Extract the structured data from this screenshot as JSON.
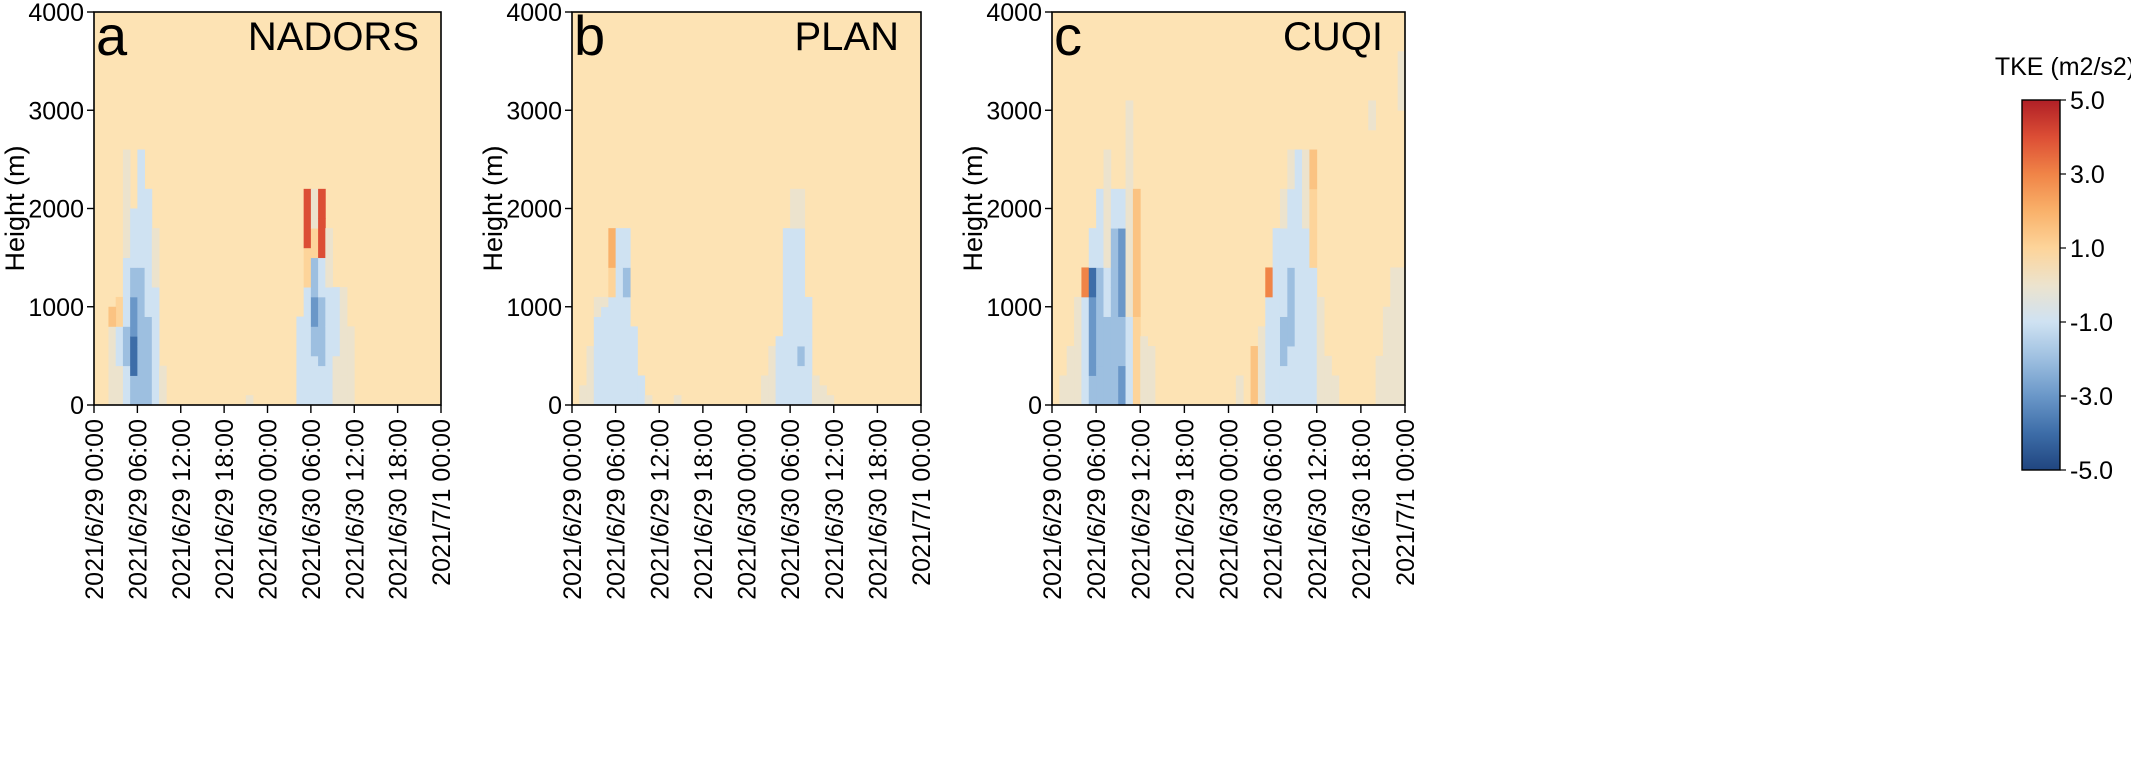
{
  "figure": {
    "colorbar": {
      "title": "TKE (m2/s2)",
      "ticks": [
        "5.0",
        "3.0",
        "1.0",
        "-1.0",
        "-3.0",
        "-5.0"
      ],
      "tick_values": [
        5,
        3,
        1,
        -1,
        -3,
        -5
      ],
      "vmin": -5,
      "vmax": 5,
      "colors": {
        "-5": "#20457f",
        "-4": "#3d6da8",
        "-3": "#6a97c8",
        "-2": "#9dbfe0",
        "-1": "#cfe2f2",
        "0": "#ece3cd",
        "1": "#fdd49a",
        "2": "#f9b16a",
        "3": "#f08447",
        "4": "#dc4e35",
        "5": "#b01f26"
      }
    },
    "background_color": "#fde3b4"
  },
  "chart_data": [
    {
      "type": "heatmap",
      "panel_letter": "a",
      "title": "NADORS",
      "ylabel": "Height (m)",
      "xlabel": "",
      "ylim": [
        0,
        4000
      ],
      "yticks": [
        0,
        1000,
        2000,
        3000,
        4000
      ],
      "xlim": [
        "2021/6/29 00:00",
        "2021/7/1 00:00"
      ],
      "xticks": [
        "2021/6/29 00:00",
        "2021/6/29 06:00",
        "2021/6/29 12:00",
        "2021/6/29 18:00",
        "2021/6/30 00:00",
        "2021/6/30 06:00",
        "2021/6/30 12:00",
        "2021/6/30 18:00",
        "2021/7/1 00:00"
      ],
      "background_value": 1,
      "cells": [
        [
          "2021/6/29 02:00",
          0,
          800,
          0
        ],
        [
          "2021/6/29 03:00",
          0,
          400,
          0
        ],
        [
          "2021/6/29 03:00",
          400,
          800,
          -1
        ],
        [
          "2021/6/29 03:00",
          800,
          1100,
          1
        ],
        [
          "2021/6/29 02:00",
          800,
          1000,
          1.5
        ],
        [
          "2021/6/29 04:00",
          0,
          400,
          -1
        ],
        [
          "2021/6/29 04:00",
          400,
          800,
          -2
        ],
        [
          "2021/6/29 04:00",
          800,
          1100,
          -1
        ],
        [
          "2021/6/29 04:00",
          1100,
          1500,
          -1
        ],
        [
          "2021/6/29 04:00",
          1500,
          2600,
          0
        ],
        [
          "2021/6/29 05:00",
          0,
          300,
          -2
        ],
        [
          "2021/6/29 05:00",
          300,
          700,
          -4
        ],
        [
          "2021/6/29 05:00",
          700,
          1100,
          -3
        ],
        [
          "2021/6/29 05:00",
          1100,
          1400,
          -2
        ],
        [
          "2021/6/29 05:00",
          1400,
          2000,
          -1
        ],
        [
          "2021/6/29 06:00",
          0,
          600,
          -2
        ],
        [
          "2021/6/29 06:00",
          600,
          1100,
          -2
        ],
        [
          "2021/6/29 06:00",
          1100,
          1400,
          -2
        ],
        [
          "2021/6/29 06:00",
          1400,
          2600,
          -1
        ],
        [
          "2021/6/29 07:00",
          0,
          900,
          -2
        ],
        [
          "2021/6/29 07:00",
          900,
          2200,
          -1
        ],
        [
          "2021/6/29 08:00",
          0,
          1200,
          -1
        ],
        [
          "2021/6/29 08:00",
          1200,
          1800,
          0
        ],
        [
          "2021/6/29 09:00",
          0,
          400,
          0
        ],
        [
          "2021/6/29 21:00",
          0,
          100,
          0
        ],
        [
          "2021/6/30 04:00",
          0,
          500,
          -1
        ],
        [
          "2021/6/30 04:00",
          500,
          900,
          -1
        ],
        [
          "2021/6/30 05:00",
          0,
          700,
          -1
        ],
        [
          "2021/6/30 05:00",
          700,
          1200,
          -1
        ],
        [
          "2021/6/30 05:00",
          1200,
          1600,
          1
        ],
        [
          "2021/6/30 05:00",
          1600,
          2200,
          4
        ],
        [
          "2021/6/30 06:00",
          0,
          500,
          -1
        ],
        [
          "2021/6/30 06:00",
          500,
          800,
          -2
        ],
        [
          "2021/6/30 06:00",
          800,
          1100,
          -3
        ],
        [
          "2021/6/30 06:00",
          1100,
          1500,
          -2
        ],
        [
          "2021/6/30 06:00",
          1500,
          1800,
          1
        ],
        [
          "2021/6/30 06:00",
          1800,
          2200,
          0
        ],
        [
          "2021/6/30 07:00",
          0,
          400,
          -1
        ],
        [
          "2021/6/30 07:00",
          400,
          1100,
          -2
        ],
        [
          "2021/6/30 07:00",
          1100,
          1500,
          -1
        ],
        [
          "2021/6/30 07:00",
          1500,
          1900,
          4
        ],
        [
          "2021/6/30 07:00",
          1900,
          2200,
          4
        ],
        [
          "2021/6/30 08:00",
          0,
          800,
          -1
        ],
        [
          "2021/6/30 08:00",
          800,
          1200,
          -1
        ],
        [
          "2021/6/30 08:00",
          1200,
          1800,
          0
        ],
        [
          "2021/6/30 09:00",
          0,
          500,
          0
        ],
        [
          "2021/6/30 09:00",
          500,
          1200,
          -1
        ],
        [
          "2021/6/30 10:00",
          0,
          300,
          0
        ],
        [
          "2021/6/30 10:00",
          300,
          1200,
          0
        ],
        [
          "2021/6/30 11:00",
          0,
          500,
          0
        ],
        [
          "2021/6/30 11:00",
          500,
          800,
          0
        ]
      ]
    },
    {
      "type": "heatmap",
      "panel_letter": "b",
      "title": "PLAN",
      "ylabel": "Height (m)",
      "xlabel": "",
      "ylim": [
        0,
        4000
      ],
      "yticks": [
        0,
        1000,
        2000,
        3000,
        4000
      ],
      "xlim": [
        "2021/6/29 00:00",
        "2021/7/1 00:00"
      ],
      "xticks": [
        "2021/6/29 00:00",
        "2021/6/29 06:00",
        "2021/6/29 12:00",
        "2021/6/29 18:00",
        "2021/6/30 00:00",
        "2021/6/30 06:00",
        "2021/6/30 12:00",
        "2021/6/30 18:00",
        "2021/7/1 00:00"
      ],
      "background_value": 1,
      "cells": [
        [
          "2021/6/29 01:00",
          0,
          200,
          0
        ],
        [
          "2021/6/29 02:00",
          0,
          600,
          0
        ],
        [
          "2021/6/29 03:00",
          0,
          900,
          -1
        ],
        [
          "2021/6/29 03:00",
          900,
          1100,
          0
        ],
        [
          "2021/6/29 04:00",
          0,
          500,
          -1
        ],
        [
          "2021/6/29 04:00",
          500,
          1000,
          -1
        ],
        [
          "2021/6/29 04:00",
          1000,
          1100,
          0
        ],
        [
          "2021/6/29 05:00",
          0,
          1100,
          -1
        ],
        [
          "2021/6/29 05:00",
          1100,
          1400,
          1
        ],
        [
          "2021/6/29 05:00",
          1400,
          1800,
          2
        ],
        [
          "2021/6/29 06:00",
          0,
          1200,
          -1
        ],
        [
          "2021/6/29 06:00",
          1200,
          1800,
          -1
        ],
        [
          "2021/6/29 07:00",
          0,
          1100,
          -1
        ],
        [
          "2021/6/29 07:00",
          1100,
          1400,
          -2
        ],
        [
          "2021/6/29 07:00",
          1400,
          1800,
          -1
        ],
        [
          "2021/6/29 08:00",
          0,
          800,
          -1
        ],
        [
          "2021/6/29 09:00",
          0,
          300,
          -1
        ],
        [
          "2021/6/29 10:00",
          0,
          100,
          0
        ],
        [
          "2021/6/29 14:00",
          0,
          100,
          0
        ],
        [
          "2021/6/30 02:00",
          0,
          300,
          0
        ],
        [
          "2021/6/30 03:00",
          0,
          600,
          0
        ],
        [
          "2021/6/30 04:00",
          0,
          700,
          -1
        ],
        [
          "2021/6/30 05:00",
          0,
          900,
          -1
        ],
        [
          "2021/6/30 05:00",
          900,
          1800,
          -1
        ],
        [
          "2021/6/30 06:00",
          0,
          400,
          -1
        ],
        [
          "2021/6/30 06:00",
          400,
          1000,
          -1
        ],
        [
          "2021/6/30 06:00",
          1000,
          1800,
          -1
        ],
        [
          "2021/6/30 06:00",
          1800,
          2200,
          0
        ],
        [
          "2021/6/30 07:00",
          0,
          400,
          -1
        ],
        [
          "2021/6/30 07:00",
          400,
          600,
          -2
        ],
        [
          "2021/6/30 07:00",
          600,
          1800,
          -1
        ],
        [
          "2021/6/30 07:00",
          1800,
          2200,
          0
        ],
        [
          "2021/6/30 08:00",
          0,
          700,
          -1
        ],
        [
          "2021/6/30 08:00",
          700,
          1100,
          -1
        ],
        [
          "2021/6/30 09:00",
          0,
          300,
          0
        ],
        [
          "2021/6/30 10:00",
          0,
          200,
          0
        ],
        [
          "2021/6/30 11:00",
          0,
          100,
          0
        ]
      ]
    },
    {
      "type": "heatmap",
      "panel_letter": "c",
      "title": "CUQI",
      "ylabel": "Height (m)",
      "xlabel": "",
      "ylim": [
        0,
        4000
      ],
      "yticks": [
        0,
        1000,
        2000,
        3000,
        4000
      ],
      "xlim": [
        "2021/6/29 00:00",
        "2021/7/1 00:00"
      ],
      "xticks": [
        "2021/6/29 00:00",
        "2021/6/29 06:00",
        "2021/6/29 12:00",
        "2021/6/29 18:00",
        "2021/6/30 00:00",
        "2021/6/30 06:00",
        "2021/6/30 12:00",
        "2021/6/30 18:00",
        "2021/7/1 00:00"
      ],
      "background_value": 1,
      "cells": [
        [
          "2021/6/29 01:00",
          0,
          300,
          0
        ],
        [
          "2021/6/29 02:00",
          0,
          600,
          0
        ],
        [
          "2021/6/29 03:00",
          0,
          700,
          0
        ],
        [
          "2021/6/29 03:00",
          700,
          1100,
          0
        ],
        [
          "2021/6/29 04:00",
          0,
          600,
          -1
        ],
        [
          "2021/6/29 04:00",
          600,
          1100,
          -1
        ],
        [
          "2021/6/29 04:00",
          1100,
          1400,
          3
        ],
        [
          "2021/6/29 05:00",
          0,
          300,
          -2
        ],
        [
          "2021/6/29 05:00",
          300,
          1100,
          -3
        ],
        [
          "2021/6/29 05:00",
          1100,
          1400,
          -4
        ],
        [
          "2021/6/29 05:00",
          1400,
          1800,
          -1
        ],
        [
          "2021/6/29 06:00",
          0,
          400,
          -2
        ],
        [
          "2021/6/29 06:00",
          400,
          1400,
          -2
        ],
        [
          "2021/6/29 06:00",
          1400,
          2200,
          -1
        ],
        [
          "2021/6/29 07:00",
          0,
          200,
          -2
        ],
        [
          "2021/6/29 07:00",
          200,
          900,
          -2
        ],
        [
          "2021/6/29 07:00",
          900,
          1400,
          -1
        ],
        [
          "2021/6/29 07:00",
          1400,
          2600,
          0
        ],
        [
          "2021/6/29 08:00",
          0,
          300,
          -2
        ],
        [
          "2021/6/29 08:00",
          300,
          1200,
          -2
        ],
        [
          "2021/6/29 08:00",
          1200,
          1800,
          -2
        ],
        [
          "2021/6/29 08:00",
          1800,
          2200,
          -1
        ],
        [
          "2021/6/29 09:00",
          0,
          400,
          -3
        ],
        [
          "2021/6/29 09:00",
          400,
          900,
          -2
        ],
        [
          "2021/6/29 09:00",
          900,
          1400,
          -3
        ],
        [
          "2021/6/29 09:00",
          1400,
          1800,
          -3
        ],
        [
          "2021/6/29 09:00",
          1800,
          2200,
          -1
        ],
        [
          "2021/6/29 10:00",
          0,
          900,
          -1
        ],
        [
          "2021/6/29 10:00",
          900,
          2600,
          0
        ],
        [
          "2021/6/29 10:00",
          2600,
          3100,
          0
        ],
        [
          "2021/6/29 11:00",
          0,
          900,
          1
        ],
        [
          "2021/6/29 11:00",
          900,
          2200,
          1.5
        ],
        [
          "2021/6/29 12:00",
          0,
          700,
          0
        ],
        [
          "2021/6/29 13:00",
          0,
          600,
          0
        ],
        [
          "2021/6/30 01:00",
          0,
          300,
          0
        ],
        [
          "2021/6/30 03:00",
          0,
          600,
          1.5
        ],
        [
          "2021/6/30 04:00",
          0,
          800,
          0
        ],
        [
          "2021/6/30 05:00",
          0,
          1100,
          -1
        ],
        [
          "2021/6/30 05:00",
          1100,
          1400,
          3
        ],
        [
          "2021/6/30 06:00",
          0,
          700,
          -1
        ],
        [
          "2021/6/30 06:00",
          700,
          1400,
          -1
        ],
        [
          "2021/6/30 06:00",
          1400,
          1800,
          -1
        ],
        [
          "2021/6/30 07:00",
          0,
          400,
          -1
        ],
        [
          "2021/6/30 07:00",
          400,
          900,
          -2
        ],
        [
          "2021/6/30 07:00",
          900,
          1800,
          -1
        ],
        [
          "2021/6/30 07:00",
          1800,
          2200,
          0
        ],
        [
          "2021/6/30 08:00",
          0,
          600,
          -1
        ],
        [
          "2021/6/30 08:00",
          600,
          1400,
          -2
        ],
        [
          "2021/6/30 08:00",
          1400,
          2200,
          -1
        ],
        [
          "2021/6/30 08:00",
          2200,
          2600,
          0
        ],
        [
          "2021/6/30 09:00",
          0,
          400,
          -1
        ],
        [
          "2021/6/30 09:00",
          400,
          1400,
          -1
        ],
        [
          "2021/6/30 09:00",
          1400,
          2600,
          -1
        ],
        [
          "2021/6/30 10:00",
          0,
          800,
          -1
        ],
        [
          "2021/6/30 10:00",
          800,
          1800,
          -1
        ],
        [
          "2021/6/30 10:00",
          1800,
          2600,
          0
        ],
        [
          "2021/6/30 11:00",
          0,
          600,
          -1
        ],
        [
          "2021/6/30 11:00",
          600,
          1400,
          -1
        ],
        [
          "2021/6/30 11:00",
          1400,
          2200,
          1
        ],
        [
          "2021/6/30 11:00",
          2200,
          2600,
          1.5
        ],
        [
          "2021/6/30 12:00",
          0,
          700,
          0
        ],
        [
          "2021/6/30 12:00",
          700,
          1100,
          0
        ],
        [
          "2021/6/30 13:00",
          0,
          500,
          0
        ],
        [
          "2021/6/30 14:00",
          0,
          300,
          0
        ],
        [
          "2021/6/30 19:00",
          2800,
          3100,
          0
        ],
        [
          "2021/6/30 19:00",
          3100,
          3100,
          0
        ],
        [
          "2021/6/30 20:00",
          0,
          500,
          0
        ],
        [
          "2021/6/30 21:00",
          0,
          800,
          0
        ],
        [
          "2021/6/30 21:00",
          800,
          1000,
          0
        ],
        [
          "2021/6/30 22:00",
          0,
          1100,
          0
        ],
        [
          "2021/6/30 22:00",
          1100,
          1400,
          0
        ],
        [
          "2021/6/30 23:00",
          0,
          1400,
          0
        ],
        [
          "2021/6/30 23:00",
          3000,
          3600,
          0
        ]
      ]
    }
  ]
}
